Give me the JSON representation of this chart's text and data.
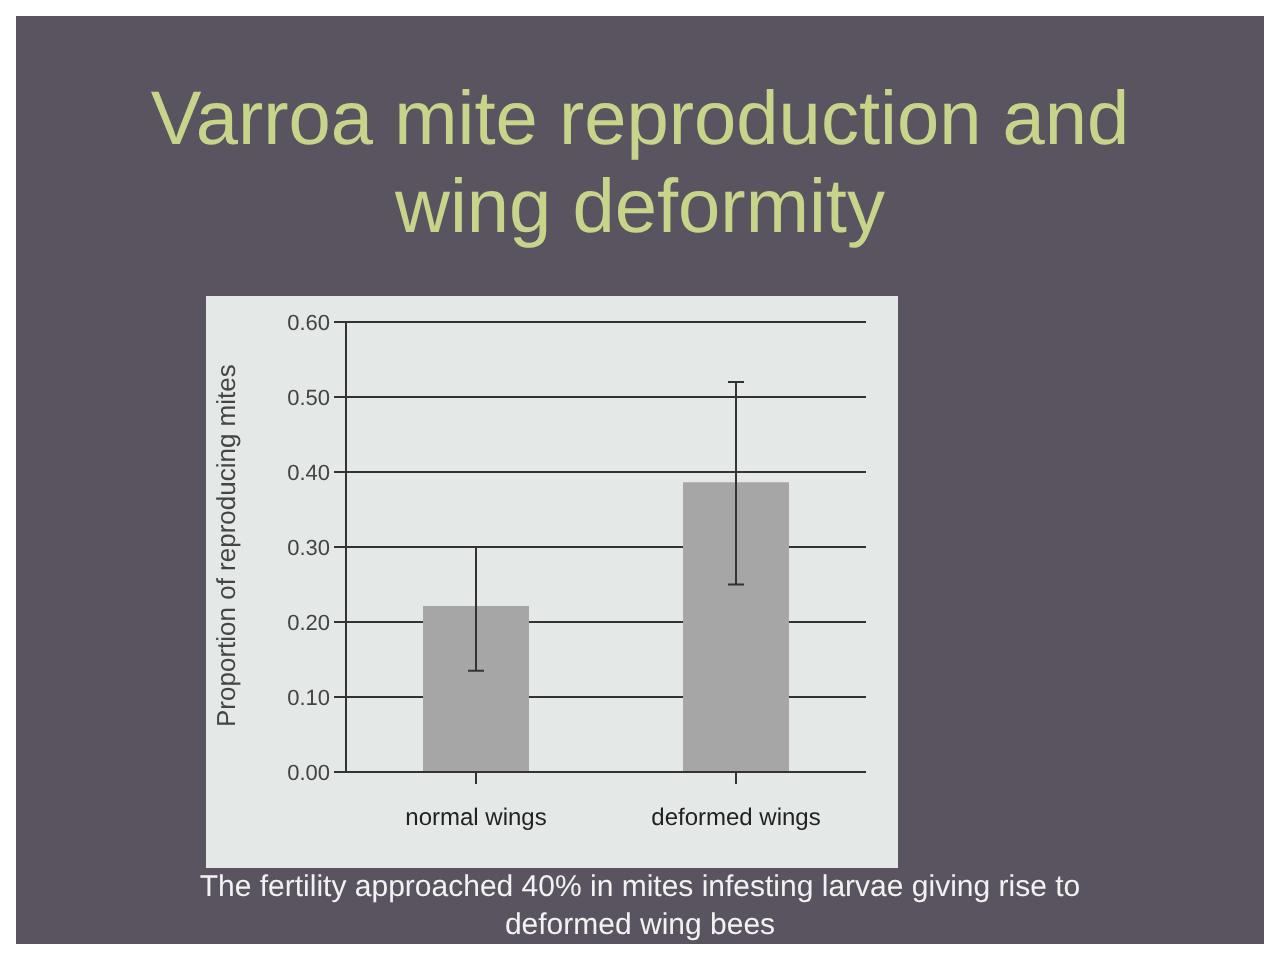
{
  "chart_data": {
    "type": "bar",
    "title": "Varroa mite reproduction and wing deformity",
    "ylabel": "Proportion of reproducing mites",
    "categories": [
      "normal wings",
      "deformed wings"
    ],
    "values": [
      0.22,
      0.385
    ],
    "color": "#a6a6a6",
    "errors": [
      [
        0.135,
        0.3
      ],
      [
        0.25,
        0.52
      ]
    ],
    "ylim": [
      0,
      0.6
    ],
    "yticks": [
      {
        "value": 0,
        "label": "0.00"
      },
      {
        "value": 0.1,
        "label": "0.10"
      },
      {
        "value": 0.2,
        "label": "0.20"
      },
      {
        "value": 0.3,
        "label": "0.30"
      },
      {
        "value": 0.4,
        "label": "0.40"
      },
      {
        "value": 0.5,
        "label": "0.50"
      },
      {
        "value": 0.6,
        "label": "0.60"
      }
    ],
    "grid": "y",
    "annotations": [
      "The fertility approached 40% in mites infesting larvae giving rise to deformed wing bees"
    ]
  }
}
